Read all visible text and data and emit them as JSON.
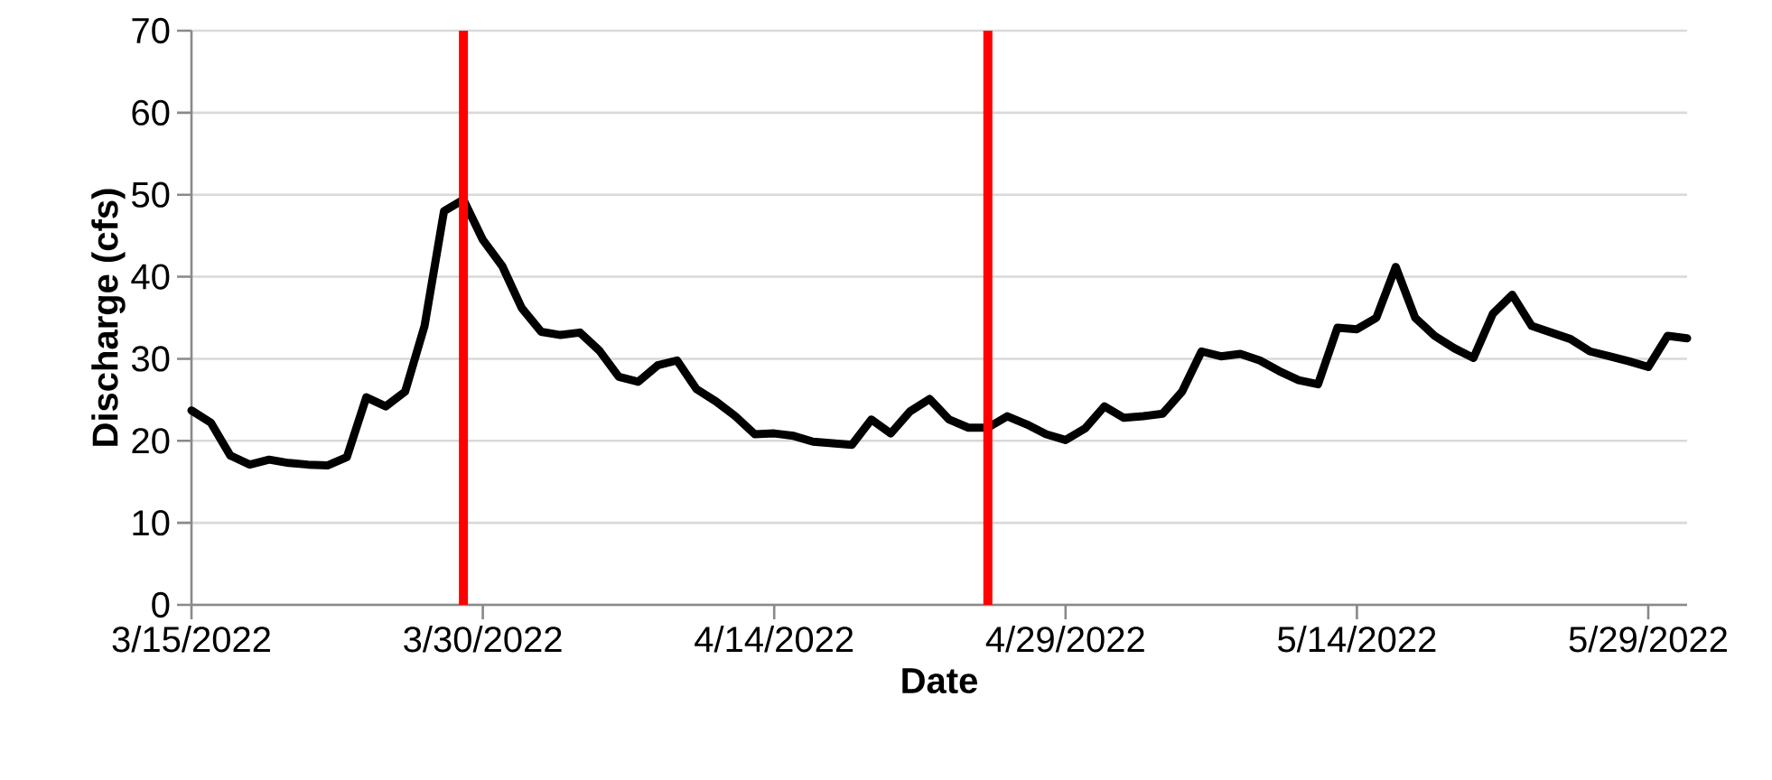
{
  "chart_data": {
    "type": "line",
    "xlabel": "Date",
    "ylabel": "Discharge (cfs)",
    "x": [
      "2022-03-15",
      "2022-03-16",
      "2022-03-17",
      "2022-03-18",
      "2022-03-19",
      "2022-03-20",
      "2022-03-21",
      "2022-03-22",
      "2022-03-23",
      "2022-03-24",
      "2022-03-25",
      "2022-03-26",
      "2022-03-27",
      "2022-03-28",
      "2022-03-29",
      "2022-03-30",
      "2022-03-31",
      "2022-04-01",
      "2022-04-02",
      "2022-04-03",
      "2022-04-04",
      "2022-04-05",
      "2022-04-06",
      "2022-04-07",
      "2022-04-08",
      "2022-04-09",
      "2022-04-10",
      "2022-04-11",
      "2022-04-12",
      "2022-04-13",
      "2022-04-14",
      "2022-04-15",
      "2022-04-16",
      "2022-04-17",
      "2022-04-18",
      "2022-04-19",
      "2022-04-20",
      "2022-04-21",
      "2022-04-22",
      "2022-04-23",
      "2022-04-24",
      "2022-04-25",
      "2022-04-26",
      "2022-04-27",
      "2022-04-28",
      "2022-04-29",
      "2022-04-30",
      "2022-05-01",
      "2022-05-02",
      "2022-05-03",
      "2022-05-04",
      "2022-05-05",
      "2022-05-06",
      "2022-05-07",
      "2022-05-08",
      "2022-05-09",
      "2022-05-10",
      "2022-05-11",
      "2022-05-12",
      "2022-05-13",
      "2022-05-14",
      "2022-05-15",
      "2022-05-16",
      "2022-05-17",
      "2022-05-18",
      "2022-05-19",
      "2022-05-20",
      "2022-05-21",
      "2022-05-22",
      "2022-05-23",
      "2022-05-24",
      "2022-05-25",
      "2022-05-26",
      "2022-05-27",
      "2022-05-28",
      "2022-05-29",
      "2022-05-30",
      "2022-05-31"
    ],
    "series": [
      {
        "color": "#000000",
        "values": [
          23.7,
          22.2,
          18.2,
          17.1,
          17.7,
          17.3,
          17.1,
          17,
          18,
          25.3,
          24.2,
          26,
          34,
          48,
          49.4,
          44.5,
          41.3,
          36.2,
          33.3,
          32.9,
          33.2,
          31,
          27.8,
          27.2,
          29.2,
          29.8,
          26.3,
          24.8,
          23,
          20.8,
          20.9,
          20.6,
          19.9,
          19.7,
          19.5,
          22.6,
          20.9,
          23.6,
          25.1,
          22.6,
          21.6,
          21.6,
          23,
          22,
          20.8,
          20.1,
          21.5,
          24.2,
          22.8,
          23,
          23.3,
          26,
          30.9,
          30.3,
          30.6,
          29.8,
          28.5,
          27.4,
          26.9,
          33.8,
          33.6,
          35,
          41.2,
          35,
          32.8,
          31.3,
          30.1,
          35.5,
          37.8,
          34,
          33.2,
          32.4,
          30.9,
          30.3,
          29.7,
          29,
          32.8,
          32.5
        ]
      }
    ],
    "xlim": [
      "2022-03-15",
      "2022-05-31"
    ],
    "xticks": [
      {
        "value": "2022-03-15",
        "label": "3/15/2022"
      },
      {
        "value": "2022-03-30",
        "label": "3/30/2022"
      },
      {
        "value": "2022-04-14",
        "label": "4/14/2022"
      },
      {
        "value": "2022-04-29",
        "label": "4/29/2022"
      },
      {
        "value": "2022-05-14",
        "label": "5/14/2022"
      },
      {
        "value": "2022-05-29",
        "label": "5/29/2022"
      }
    ],
    "ylim": [
      0,
      70
    ],
    "yticks": [
      0,
      10,
      20,
      30,
      40,
      50,
      60,
      70
    ],
    "ref_lines": [
      {
        "axis": "x",
        "value": "2022-03-29",
        "color": "#ff0000"
      },
      {
        "axis": "x",
        "value": "2022-04-25",
        "color": "#ff0000"
      }
    ],
    "grid": "y",
    "marker": "none",
    "line_style": "solid"
  }
}
